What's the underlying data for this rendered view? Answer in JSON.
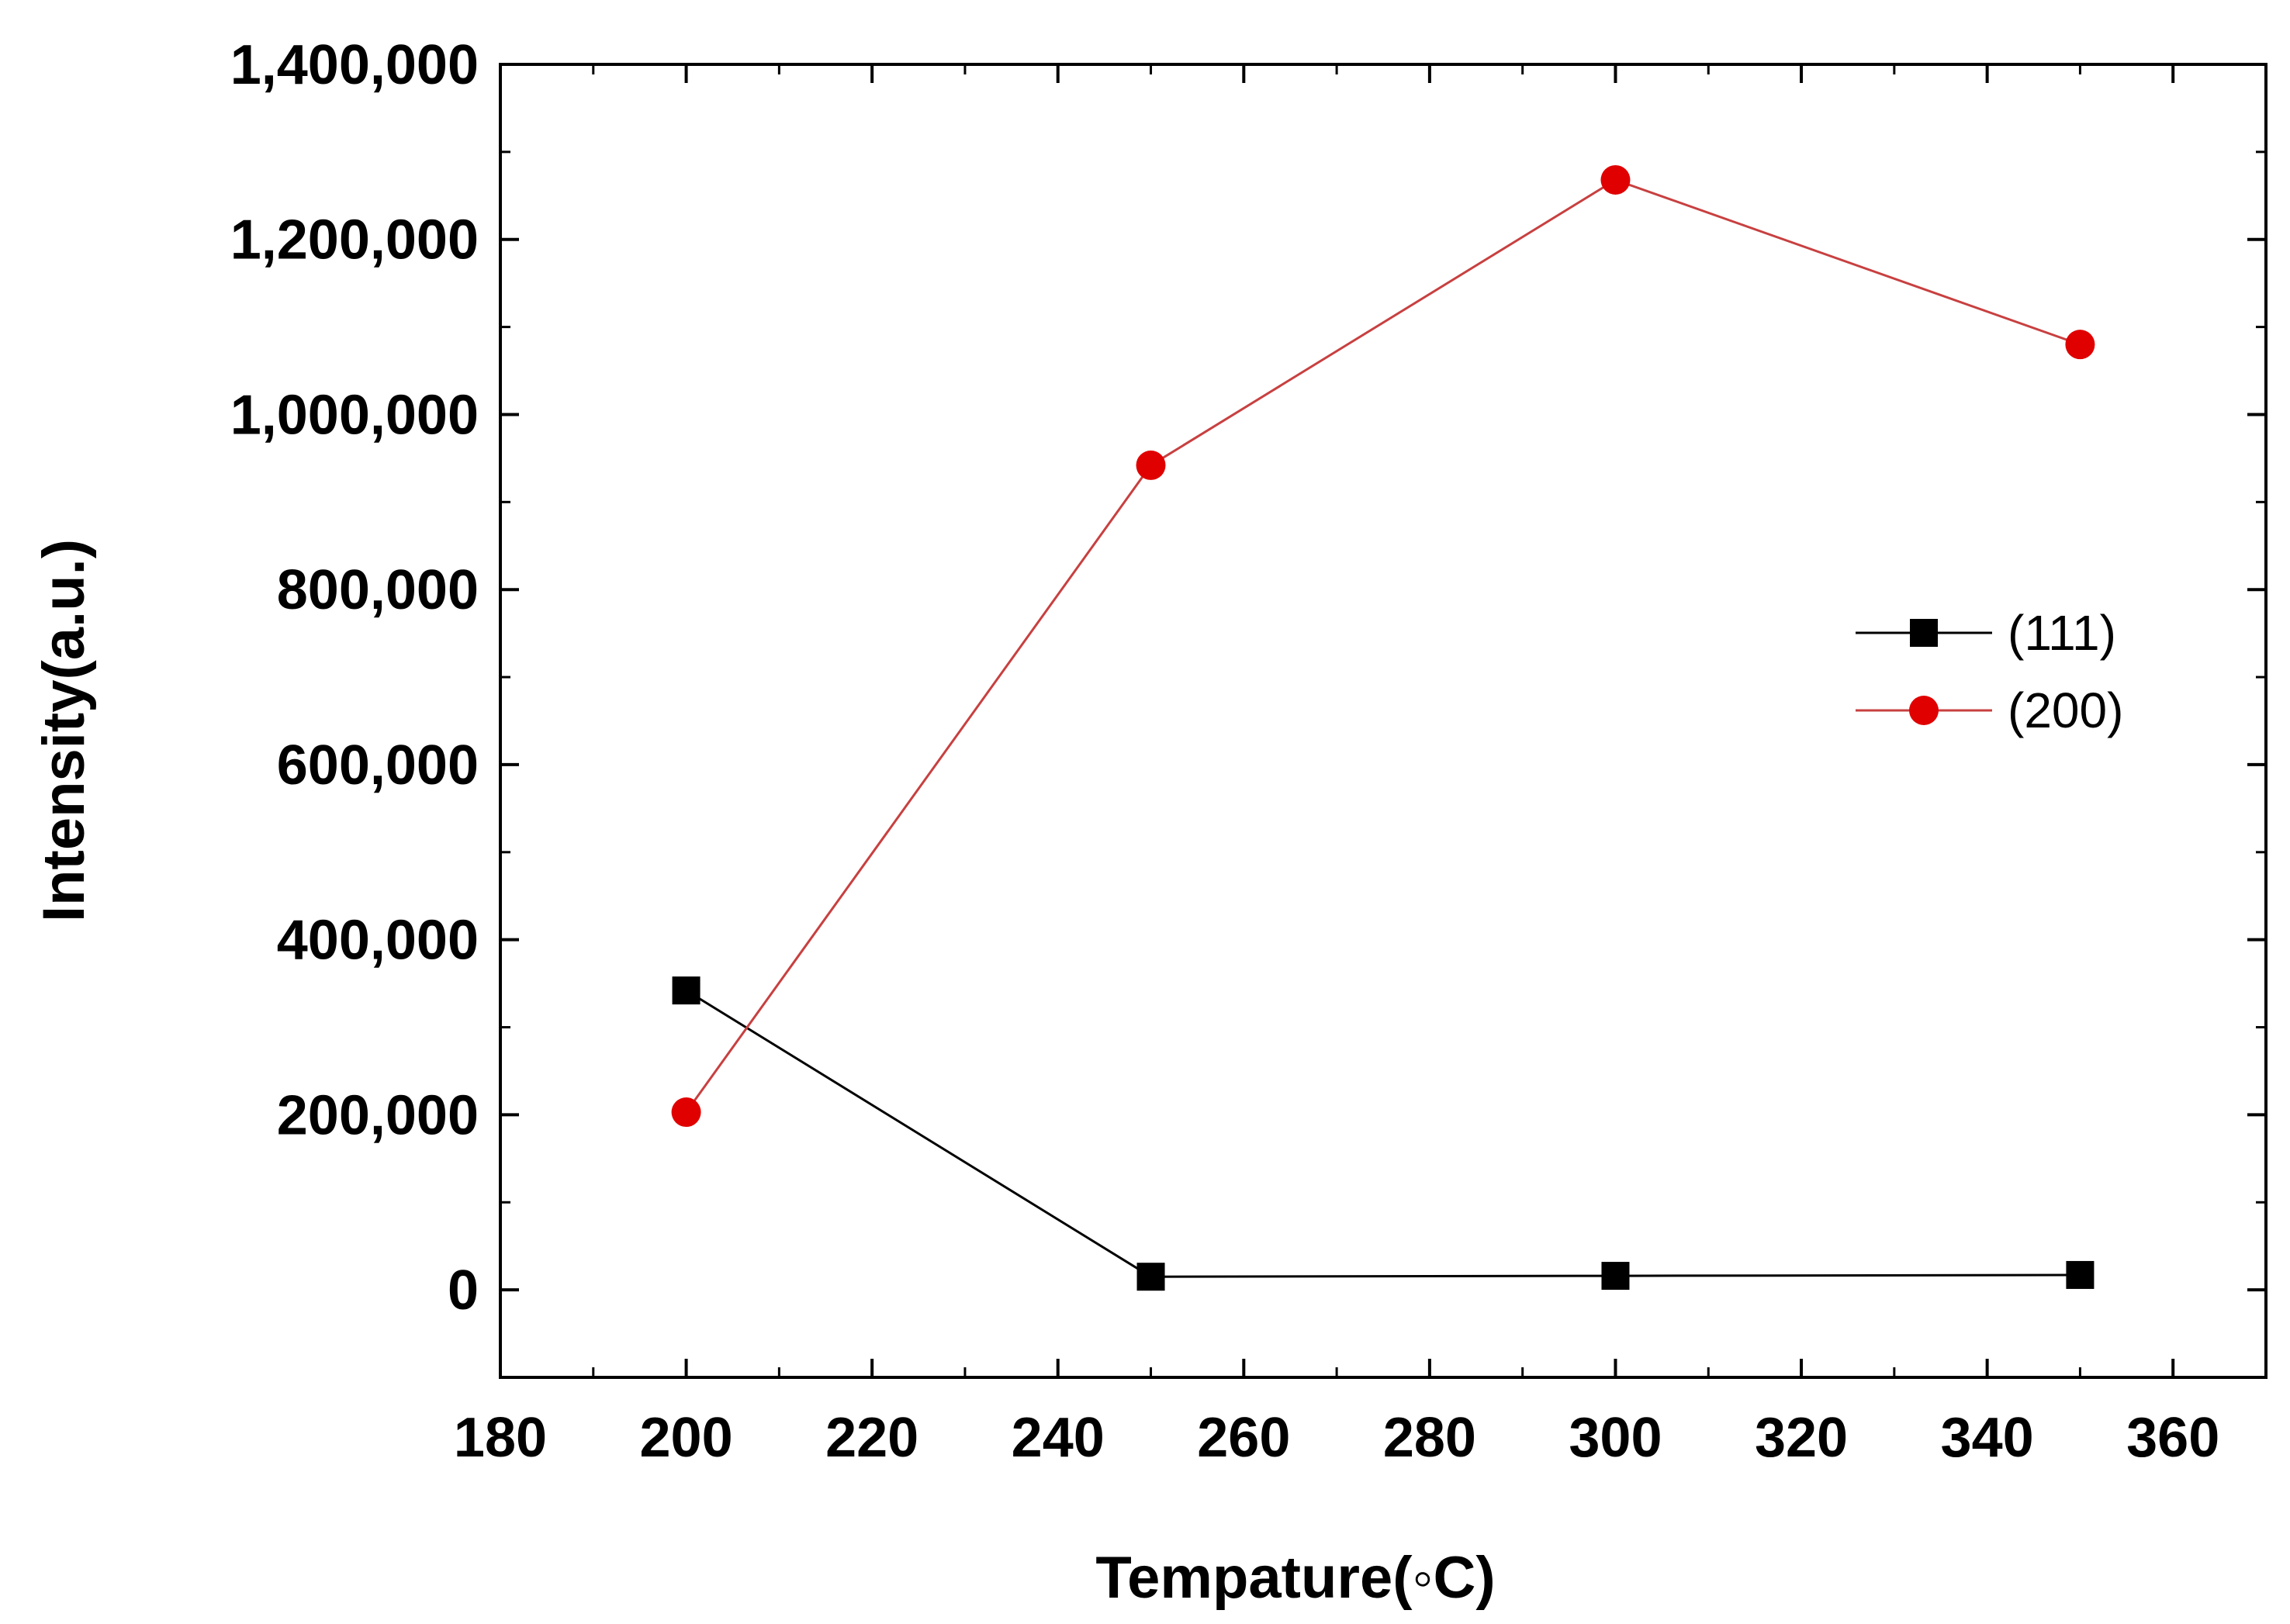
{
  "chart_data": {
    "type": "line",
    "title": "",
    "xlabel": "Tempature(◦C)",
    "ylabel": "Intensity(a.u.)",
    "xlim": [
      180,
      370
    ],
    "ylim": [
      -100000,
      1400000
    ],
    "xticks": [
      180,
      200,
      220,
      240,
      260,
      280,
      300,
      320,
      340,
      360
    ],
    "xtick_labels": [
      "180",
      "200",
      "220",
      "240",
      "260",
      "280",
      "300",
      "320",
      "340",
      "360"
    ],
    "yticks": [
      0,
      200000,
      400000,
      600000,
      800000,
      1000000,
      1200000,
      1400000
    ],
    "ytick_labels": [
      "0",
      "200,000",
      "400,000",
      "600,000",
      "800,000",
      "1,000,000",
      "1,200,000",
      "1,400,000"
    ],
    "x": [
      200,
      250,
      300,
      350
    ],
    "series": [
      {
        "name": "(111)",
        "values": [
          342000,
          15000,
          16000,
          17000
        ],
        "color": "#000000",
        "marker": "square"
      },
      {
        "name": "(200)",
        "values": [
          203000,
          942000,
          1268000,
          1080000
        ],
        "color": "#e00000",
        "line_color": "#c84040",
        "marker": "circle"
      }
    ],
    "legend_position": "right"
  }
}
